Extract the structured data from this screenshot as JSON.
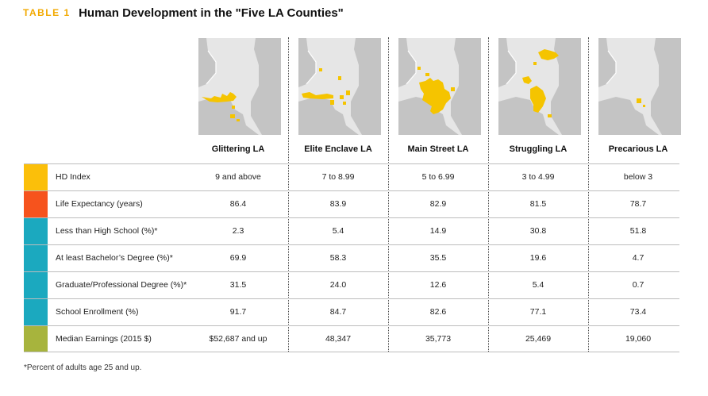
{
  "title": {
    "tag": "TABLE 1",
    "text": "Human Development in the \"Five LA Counties\""
  },
  "colors": {
    "tag": "#f2a900",
    "highlight": "#f5c400",
    "map_land": "#e6e6e6",
    "map_other": "#c4c4c4"
  },
  "columns": [
    "Glittering LA",
    "Elite Enclave LA",
    "Main Street LA",
    "Struggling LA",
    "Precarious LA"
  ],
  "map_icons": [
    "glittering-la-map",
    "elite-enclave-la-map",
    "main-street-la-map",
    "struggling-la-map",
    "precarious-la-map"
  ],
  "rows": [
    {
      "label": "HD Index",
      "color": "#fbbf0a",
      "values": [
        "9 and above",
        "7 to 8.99",
        "5 to 6.99",
        "3 to 4.99",
        "below 3"
      ]
    },
    {
      "label": "Life Expectancy (years)",
      "color": "#f6531d",
      "values": [
        "86.4",
        "83.9",
        "82.9",
        "81.5",
        "78.7"
      ]
    },
    {
      "label": "Less than High School (%)*",
      "color": "#1ba9bf",
      "values": [
        "2.3",
        "5.4",
        "14.9",
        "30.8",
        "51.8"
      ]
    },
    {
      "label": "At least Bachelor’s Degree (%)*",
      "color": "#1ba9bf",
      "values": [
        "69.9",
        "58.3",
        "35.5",
        "19.6",
        "4.7"
      ]
    },
    {
      "label": "Graduate/Professional Degree (%)*",
      "color": "#1ba9bf",
      "values": [
        "31.5",
        "24.0",
        "12.6",
        "5.4",
        "0.7"
      ]
    },
    {
      "label": "School Enrollment (%)",
      "color": "#1ba9bf",
      "values": [
        "91.7",
        "84.7",
        "82.6",
        "77.1",
        "73.4"
      ]
    },
    {
      "label": "Median Earnings (2015 $)",
      "color": "#a7b43d",
      "values": [
        "$52,687 and up",
        "48,347",
        "35,773",
        "25,469",
        "19,060"
      ]
    }
  ],
  "footnote": "*Percent of adults age 25 and up."
}
